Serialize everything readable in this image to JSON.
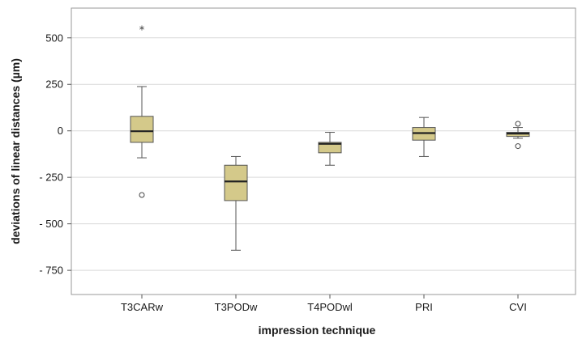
{
  "chart_data": {
    "type": "box",
    "xlabel": "impression technique",
    "ylabel": "deviations of linear distances (µm)",
    "ylim": [
      -880,
      660
    ],
    "yticks": [
      500,
      250,
      0,
      -250,
      -500,
      -750
    ],
    "ytick_labels": [
      "500",
      "250",
      "0",
      "- 250",
      "- 500",
      "- 750"
    ],
    "grid": "horizontal",
    "box_color": "#d4c98a",
    "categories": [
      "T3CARw",
      "T3PODw",
      "T4PODwl",
      "PRI",
      "CVI"
    ],
    "boxes": [
      {
        "category": "T3CARw",
        "whisker_low": -145,
        "q1": -62,
        "median": -2,
        "q3": 78,
        "whisker_high": 238,
        "outliers": [
          {
            "value": 545,
            "marker": "star"
          },
          {
            "value": -345,
            "marker": "circle"
          }
        ]
      },
      {
        "category": "T3PODw",
        "whisker_low": -642,
        "q1": -375,
        "median": -272,
        "q3": -185,
        "whisker_high": -138,
        "outliers": []
      },
      {
        "category": "T4PODwl",
        "whisker_low": -185,
        "q1": -118,
        "median": -70,
        "q3": -62,
        "whisker_high": -8,
        "outliers": []
      },
      {
        "category": "PRI",
        "whisker_low": -138,
        "q1": -50,
        "median": -12,
        "q3": 18,
        "whisker_high": 72,
        "outliers": []
      },
      {
        "category": "CVI",
        "whisker_low": -40,
        "q1": -30,
        "median": -15,
        "q3": -8,
        "whisker_high": 18,
        "outliers": [
          {
            "value": 38,
            "marker": "circle"
          },
          {
            "value": -82,
            "marker": "circle"
          }
        ]
      }
    ]
  }
}
